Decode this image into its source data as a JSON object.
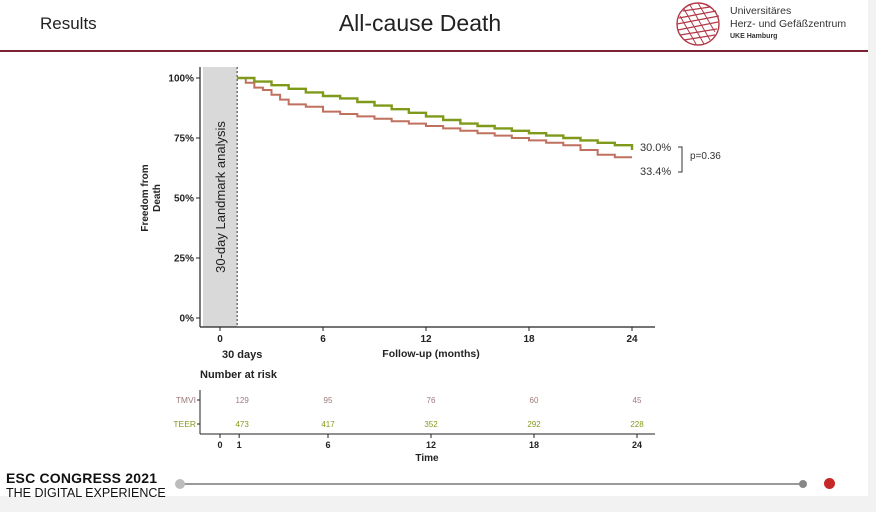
{
  "header": {
    "section": "Results",
    "title": "All-cause Death",
    "logo": {
      "line1": "Universitäres",
      "line2": "Herz- und Gefäßzentrum",
      "line3": "UKE Hamburg"
    }
  },
  "chart_data": {
    "type": "line",
    "title": "",
    "ylabel": "Freedom from Death",
    "xlabel": "Follow-up (months)",
    "ylim": [
      0,
      100
    ],
    "xlim": [
      0,
      24
    ],
    "y_ticks": [
      "0%",
      "25%",
      "50%",
      "75%",
      "100%"
    ],
    "x_ticks": [
      "0",
      "6",
      "12",
      "18",
      "24"
    ],
    "landmark_label": "30-day Landmark analysis",
    "landmark_x": 1,
    "landmark_tick_label": "30 days",
    "series": [
      {
        "name": "TMVI",
        "color": "#c0705e",
        "x": [
          1,
          1.5,
          2,
          2.5,
          3,
          3.5,
          4,
          5,
          6,
          7,
          8,
          9,
          10,
          11,
          12,
          13,
          14,
          15,
          16,
          17,
          18,
          19,
          20,
          21,
          22,
          23,
          24
        ],
        "y": [
          100,
          98,
          96,
          95,
          93,
          91,
          89,
          88,
          86,
          85,
          84,
          83,
          82,
          81,
          80,
          79,
          78,
          77,
          76,
          75,
          74,
          73,
          72,
          70,
          68,
          67,
          67
        ],
        "end_label": "33.4%"
      },
      {
        "name": "TEER",
        "color": "#7f9a1a",
        "x": [
          1,
          2,
          3,
          4,
          5,
          6,
          7,
          8,
          9,
          10,
          11,
          12,
          13,
          14,
          15,
          16,
          17,
          18,
          19,
          20,
          21,
          22,
          23,
          24
        ],
        "y": [
          100,
          98.5,
          97,
          95.5,
          94,
          92.5,
          91.5,
          90,
          88.5,
          87,
          85.5,
          84,
          82.5,
          81,
          80,
          79,
          78,
          77,
          76,
          75,
          74,
          73,
          72,
          70
        ],
        "end_label": "30.0%"
      }
    ],
    "pvalue": "p=0.36",
    "risk_table": {
      "title": "Number at risk",
      "xlabel": "Time",
      "x_ticks": [
        "0",
        "1",
        "6",
        "12",
        "18",
        "24"
      ],
      "tick_values": [
        0,
        1,
        6,
        12,
        18,
        24
      ],
      "rows": [
        {
          "name": "TMVI",
          "color": "#9c7a7a",
          "values": [
            "129",
            "95",
            "76",
            "60",
            "45"
          ]
        },
        {
          "name": "TEER",
          "color": "#7f9a1a",
          "values": [
            "473",
            "417",
            "352",
            "292",
            "228"
          ]
        }
      ]
    }
  },
  "footer": {
    "conference": "ESC CONGRESS 2021",
    "subtitle": "THE DIGITAL EXPERIENCE",
    "progress": 0.998
  }
}
